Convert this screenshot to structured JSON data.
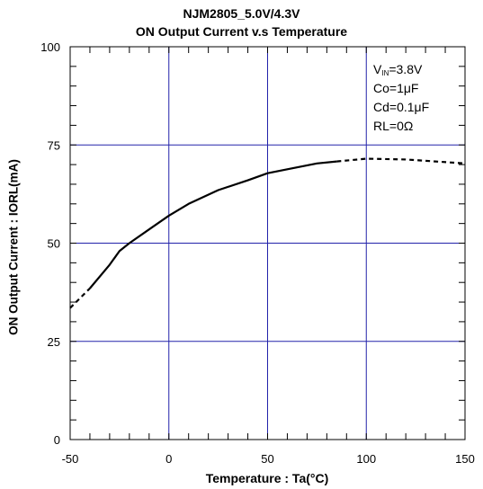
{
  "chart_data": {
    "type": "line",
    "title": "NJM2805_5.0V/4.3V",
    "subtitle": "ON Output Current v.s Temperature",
    "xlabel": "Temperature : Ta(°C)",
    "ylabel": "ON Output Current : IORL(mA)",
    "xlim": [
      -50,
      150
    ],
    "ylim": [
      0,
      100
    ],
    "xticks": [
      "-50",
      "0",
      "50",
      "100",
      "150"
    ],
    "yticks": [
      "0",
      "25",
      "50",
      "75",
      "100"
    ],
    "grid": true,
    "annotations": [
      "VIN=3.8V",
      "Co=1μF",
      "Cd=0.1μF",
      "RL=0Ω"
    ],
    "series": [
      {
        "style": "dashed",
        "x": [
          -50,
          -45,
          -40
        ],
        "y": [
          33.5,
          36,
          38.5
        ]
      },
      {
        "style": "solid",
        "x": [
          -40,
          -30,
          -25,
          -20,
          -10,
          0,
          10,
          25,
          40,
          50,
          60,
          75,
          85
        ],
        "y": [
          38.5,
          44.5,
          48,
          50,
          53.5,
          57,
          60,
          63.5,
          66,
          67.8,
          68.8,
          70.3,
          70.8
        ]
      },
      {
        "style": "dashed",
        "x": [
          85,
          100,
          120,
          135,
          150
        ],
        "y": [
          70.8,
          71.5,
          71.3,
          70.8,
          70.3
        ]
      }
    ]
  }
}
